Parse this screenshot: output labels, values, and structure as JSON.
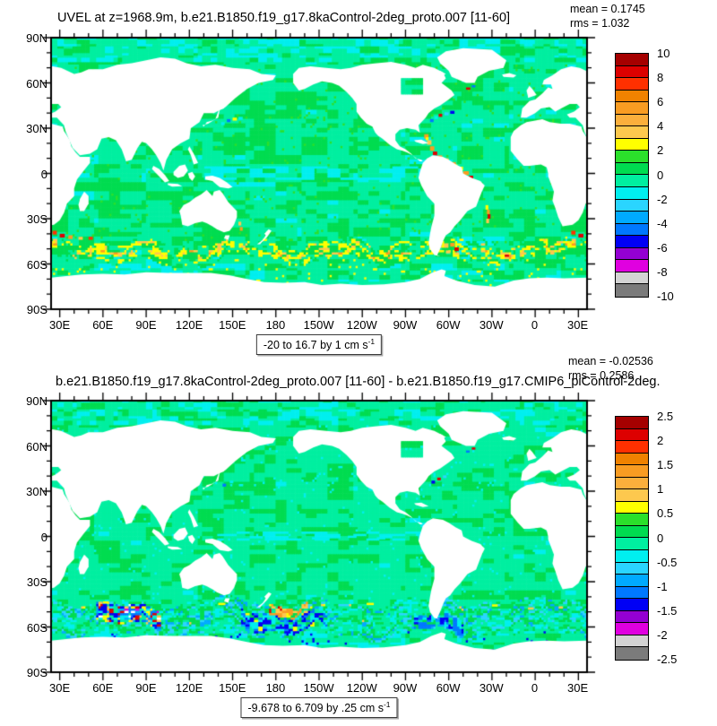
{
  "palette20": [
    "#a50000",
    "#dd0000",
    "#ff3000",
    "#f08200",
    "#f99c22",
    "#fbaf3c",
    "#fdc84e",
    "#ffff00",
    "#2be02b",
    "#00dc50",
    "#00efa0",
    "#00efef",
    "#2ad5ff",
    "#00aaff",
    "#0078ff",
    "#0000f5",
    "#9400d3",
    "#e000e0",
    "#d3d3d3",
    "#7b7b7b"
  ],
  "axes": {
    "lat_labels": [
      "90N",
      "60N",
      "30N",
      "0",
      "30S",
      "60S",
      "90S"
    ],
    "lon_labels": [
      "30E",
      "60E",
      "90E",
      "120E",
      "150E",
      "180",
      "150W",
      "120W",
      "90W",
      "60W",
      "30W",
      "0",
      "30E"
    ]
  },
  "figures": [
    {
      "title": "UVEL at z=1968.9m, b.e21.B1850.f19_g17.8kaControl-2deg_proto.007 [11-60]",
      "mean": "mean = 0.1745",
      "rms": "rms = 1.032",
      "caption": "-20 to 16.7 by 1 cm s",
      "caption_sup": "-1",
      "colorbar_labels": [
        "10",
        "8",
        "6",
        "4",
        "2",
        "0",
        "-2",
        "-4",
        "-6",
        "-8",
        "-10"
      ]
    },
    {
      "title": "b.e21.B1850.f19_g17.8kaControl-2deg_proto.007 [11-60] - b.e21.B1850.f19_g17.CMIP6_piControl-2deg.",
      "mean": "mean = -0.02536",
      "rms": "rms = 0.2586",
      "caption": "-9.678 to 6.709 by .25 cm s",
      "caption_sup": "-1",
      "colorbar_labels": [
        "2.5",
        "2",
        "1.5",
        "1",
        "0.5",
        "0",
        "-0.5",
        "-1",
        "-1.5",
        "-2",
        "-2.5"
      ]
    }
  ],
  "chart_data": [
    {
      "type": "heatmap",
      "title": "UVEL at z=1968.9m, b.e21.B1850.f19_g17.8kaControl-2deg_proto.007 [11-60]",
      "variable": "UVEL",
      "level": "z=1968.9m",
      "case": "b.e21.B1850.f19_g17.8kaControl-2deg_proto.007",
      "years": "[11-60]",
      "mean": 0.1745,
      "rms": 1.032,
      "value_min": -20,
      "value_max": 16.7,
      "contour_interval": 1,
      "units": "cm s-1",
      "range_caption": "-20 to 16.7 by 1 cm s-1",
      "colorbar_levels": [
        10,
        8,
        6,
        4,
        2,
        0,
        -2,
        -4,
        -6,
        -8,
        -10
      ],
      "colorbar_colors": [
        "#a50000",
        "#dd0000",
        "#ff3000",
        "#f08200",
        "#f99c22",
        "#fbaf3c",
        "#fdc84e",
        "#ffff00",
        "#2be02b",
        "#00dc50",
        "#00efa0",
        "#00efef",
        "#2ad5ff",
        "#00aaff",
        "#0078ff",
        "#0000f5",
        "#9400d3",
        "#e000e0",
        "#d3d3d3",
        "#7b7b7b"
      ],
      "x_ticks": [
        "30E",
        "60E",
        "90E",
        "120E",
        "150E",
        "180",
        "150W",
        "120W",
        "90W",
        "60W",
        "30W",
        "0",
        "30E"
      ],
      "y_ticks": [
        "90N",
        "60N",
        "30N",
        "0",
        "30S",
        "60S",
        "90S"
      ],
      "legend_position": "right",
      "grid": false,
      "projection": "global cylindrical equidistant, land masked white"
    },
    {
      "type": "heatmap",
      "title": "b.e21.B1850.f19_g17.8kaControl-2deg_proto.007 [11-60] - b.e21.B1850.f19_g17.CMIP6_piControl-2deg.",
      "variable": "UVEL difference",
      "expression": "8kaControl-2deg_proto.007 [11-60] minus CMIP6_piControl-2deg",
      "mean": -0.02536,
      "rms": 0.2586,
      "value_min": -9.678,
      "value_max": 6.709,
      "contour_interval": 0.25,
      "units": "cm s-1",
      "range_caption": "-9.678 to 6.709 by .25 cm s-1",
      "colorbar_levels": [
        2.5,
        2,
        1.5,
        1,
        0.5,
        0,
        -0.5,
        -1,
        -1.5,
        -2,
        -2.5
      ],
      "colorbar_colors": [
        "#a50000",
        "#dd0000",
        "#ff3000",
        "#f08200",
        "#f99c22",
        "#fbaf3c",
        "#fdc84e",
        "#ffff00",
        "#2be02b",
        "#00dc50",
        "#00efa0",
        "#00efef",
        "#2ad5ff",
        "#00aaff",
        "#0078ff",
        "#0000f5",
        "#9400d3",
        "#e000e0",
        "#d3d3d3",
        "#7b7b7b"
      ],
      "x_ticks": [
        "30E",
        "60E",
        "90E",
        "120E",
        "150E",
        "180",
        "150W",
        "120W",
        "90W",
        "60W",
        "30W",
        "0",
        "30E"
      ],
      "y_ticks": [
        "90N",
        "60N",
        "30N",
        "0",
        "30S",
        "60S",
        "90S"
      ],
      "legend_position": "right",
      "grid": false,
      "projection": "global cylindrical equidistant, land masked white"
    }
  ]
}
